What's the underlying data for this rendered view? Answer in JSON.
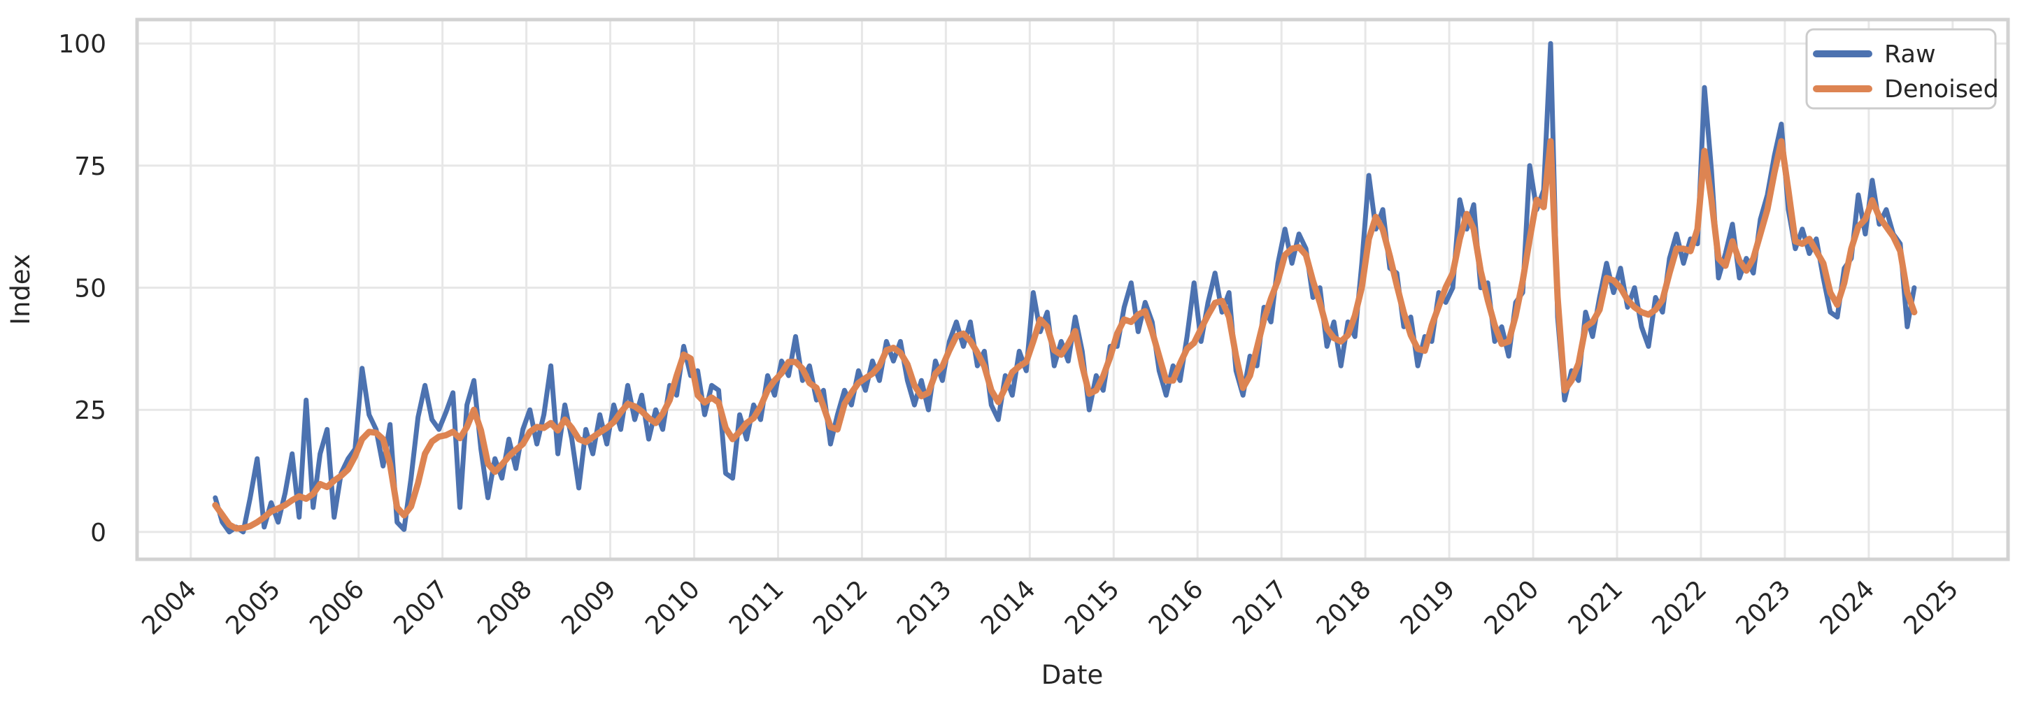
{
  "figure": {
    "background_color": "#ffffff",
    "plot_background_color": "#ffffff",
    "grid_color": "#e7e7e7",
    "spine_color": "#d2d2d2",
    "text_color": "#262626"
  },
  "chart_data": {
    "type": "line",
    "title": "",
    "xlabel": "Date",
    "ylabel": "Index",
    "grid": true,
    "legend_position": "upper right",
    "x_axis": {
      "tick_labels": [
        "2004",
        "2005",
        "2006",
        "2007",
        "2008",
        "2009",
        "2010",
        "2011",
        "2012",
        "2013",
        "2014",
        "2015",
        "2016",
        "2017",
        "2018",
        "2019",
        "2020",
        "2021",
        "2022",
        "2023",
        "2024",
        "2025"
      ],
      "ticks": [
        2004,
        2005,
        2006,
        2007,
        2008,
        2009,
        2010,
        2011,
        2012,
        2013,
        2014,
        2015,
        2016,
        2017,
        2018,
        2019,
        2020,
        2021,
        2022,
        2023,
        2024,
        2025
      ],
      "lim": [
        2003.36,
        2025.66
      ],
      "tick_rotation_deg": 45
    },
    "y_axis": {
      "tick_labels": [
        "0",
        "25",
        "50",
        "75",
        "100"
      ],
      "ticks": [
        0,
        25,
        50,
        75,
        100
      ],
      "lim": [
        -5.6,
        104.9
      ]
    },
    "x_start": 2004.2917,
    "x_step_years": 0.0833333,
    "x_start_label": "2004-04",
    "x_end_label": "2024-07",
    "sampling": "monthly estimates digitized from plot",
    "series": [
      {
        "name": "Raw",
        "color": "#4C72B0",
        "line_width": 7,
        "values": [
          7,
          2,
          0,
          1,
          0,
          7,
          15,
          1,
          6,
          2,
          8,
          16,
          3,
          27,
          5,
          16,
          21,
          3,
          12,
          15,
          17,
          33.5,
          24,
          21,
          13.5,
          22,
          2,
          0.5,
          11,
          23.5,
          30,
          23,
          21,
          24.5,
          28.5,
          5,
          26,
          31,
          17,
          7,
          15,
          11,
          19,
          13,
          21,
          25,
          18,
          24,
          34,
          16,
          26,
          19,
          9,
          21,
          16,
          24,
          18,
          26,
          21,
          30,
          23,
          28,
          19,
          25,
          21,
          30,
          28,
          38,
          32,
          33,
          24,
          30,
          29,
          12,
          11,
          24,
          19,
          26,
          23,
          32,
          28,
          35,
          32,
          40,
          31,
          34,
          27,
          29,
          18,
          24,
          29,
          26,
          33,
          29,
          35,
          31,
          39,
          35,
          39,
          31,
          26,
          31,
          25,
          35,
          31,
          39,
          43,
          38,
          43,
          34,
          37,
          26,
          23,
          32,
          28,
          37,
          33,
          49,
          41,
          45,
          34,
          39,
          35,
          44,
          37,
          25,
          32,
          29,
          38,
          38,
          46,
          51,
          41,
          47,
          43,
          33,
          28,
          34,
          31,
          40,
          51,
          39,
          47,
          53,
          45,
          49,
          33,
          28,
          36,
          34,
          46,
          43,
          55,
          62,
          55,
          61,
          58,
          48,
          50,
          38,
          43,
          34,
          43,
          40,
          55,
          73,
          62,
          66,
          54,
          53,
          42,
          44,
          34,
          40,
          39,
          49,
          47,
          50,
          68,
          62,
          67,
          50,
          51,
          39,
          42,
          36,
          47,
          49,
          75,
          66,
          70,
          100,
          44,
          27,
          33,
          31,
          45,
          40,
          48,
          55,
          49,
          54,
          46,
          50,
          42,
          38,
          48,
          45,
          56,
          61,
          55,
          60,
          59,
          91,
          74,
          52,
          57,
          63,
          52,
          56,
          53,
          64,
          69,
          77,
          83.5,
          66,
          58,
          62,
          57,
          60,
          52,
          45,
          44,
          54,
          56,
          69,
          61,
          72,
          63,
          66,
          61,
          59,
          42,
          50
        ]
      },
      {
        "name": "Denoised",
        "color": "#DD8452",
        "line_width": 9,
        "values": [
          5.5,
          3.5,
          1.5,
          0.7,
          0.8,
          1.2,
          2,
          3,
          4.2,
          4.8,
          5.5,
          6.5,
          7.3,
          6.8,
          7.8,
          9.8,
          9.2,
          10.5,
          11.5,
          12.8,
          15.5,
          19,
          20.5,
          20.3,
          19,
          13.8,
          5,
          3.4,
          5.2,
          10,
          16,
          18.5,
          19.5,
          19.8,
          20.5,
          19.2,
          21.5,
          25,
          20.8,
          14,
          12.3,
          13.8,
          15.5,
          16.8,
          18,
          20.5,
          21.5,
          21.3,
          22.3,
          20.8,
          23,
          21.3,
          19,
          18.4,
          19.4,
          20.4,
          21.3,
          22.5,
          24.5,
          26.2,
          25.7,
          24.7,
          23.3,
          22.3,
          24.2,
          27,
          32,
          36.3,
          35.5,
          28,
          26.5,
          27.5,
          26.5,
          21.3,
          19,
          20.5,
          22.3,
          23.3,
          25.7,
          29,
          31,
          32.5,
          34.8,
          34.8,
          33.4,
          30.5,
          29.5,
          25.7,
          21.5,
          21,
          26.2,
          28.5,
          30.5,
          31.5,
          32.4,
          34,
          37.2,
          37.7,
          36.7,
          34.3,
          30,
          27.8,
          28.5,
          32.4,
          33.9,
          37.2,
          40.1,
          40.6,
          39.1,
          36.7,
          33.9,
          29,
          26.6,
          29.5,
          32.7,
          33.9,
          34.8,
          39,
          43.5,
          42,
          37.2,
          36.3,
          38.5,
          41.1,
          34,
          28.3,
          29,
          31.9,
          35.8,
          40.6,
          43.5,
          43,
          44.5,
          45.2,
          41,
          36,
          31,
          31,
          34.5,
          37.5,
          38.7,
          41.6,
          44.4,
          46.9,
          47.3,
          44,
          36,
          29.5,
          32,
          37.7,
          43.5,
          47.8,
          51.5,
          56.7,
          58,
          58.3,
          56.7,
          51.4,
          46.9,
          41.6,
          39.7,
          39,
          40.3,
          44.3,
          50.1,
          60,
          64.5,
          61.9,
          56.5,
          50.5,
          44.9,
          40.3,
          37.5,
          37.1,
          42.3,
          46.2,
          50.1,
          53,
          60,
          65.1,
          62,
          53.4,
          47.5,
          42.3,
          38.5,
          39,
          44.3,
          51.4,
          60,
          68,
          66.5,
          80,
          48,
          29,
          31,
          34.5,
          42,
          43,
          45.5,
          52,
          51.5,
          50,
          47.5,
          46,
          45,
          44.5,
          45.5,
          47.5,
          53,
          58,
          58,
          57.5,
          62,
          78,
          68,
          56,
          54.5,
          59.5,
          55.5,
          53.5,
          56,
          61,
          66,
          73.5,
          80,
          70,
          59.5,
          59,
          60,
          57.5,
          55,
          49,
          46.5,
          51,
          58,
          62.5,
          64,
          67.9,
          64.5,
          62.5,
          60.5,
          57.5,
          49,
          45
        ]
      }
    ],
    "legend": {
      "entries": [
        "Raw",
        "Denoised"
      ]
    }
  }
}
